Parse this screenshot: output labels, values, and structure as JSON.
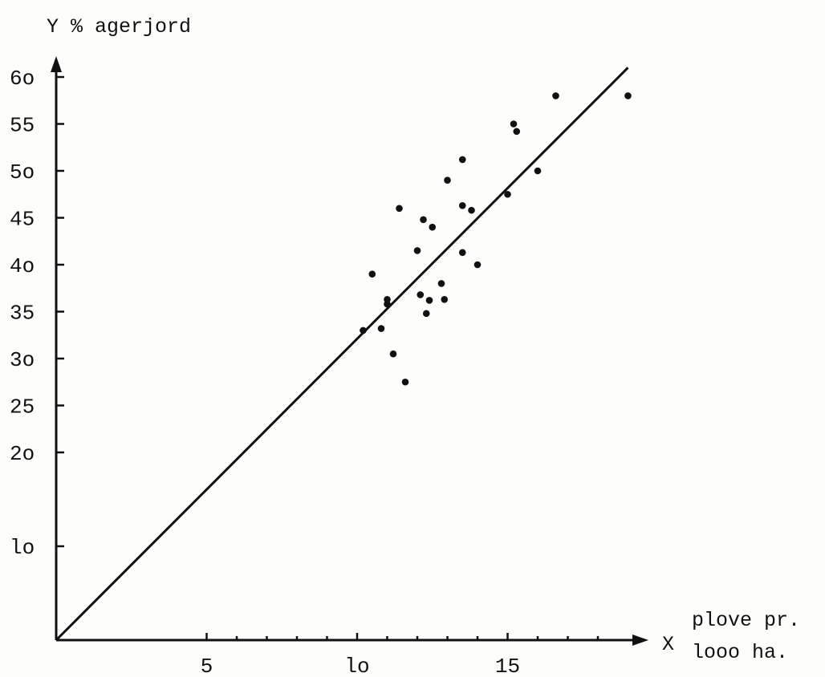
{
  "chart_data": {
    "type": "scatter",
    "title": "",
    "ylabel": "Y % agerjord",
    "xlabel_axis_letter": "X",
    "xlabel_lines": [
      "plove pr.",
      "looo ha."
    ],
    "xlim": [
      0,
      19.5
    ],
    "ylim": [
      0,
      62
    ],
    "grid": false,
    "x_ticks": [
      5,
      10,
      15
    ],
    "x_tick_labels": [
      "5",
      "lo",
      "15"
    ],
    "y_ticks": [
      10,
      20,
      25,
      30,
      35,
      40,
      45,
      50,
      55,
      60
    ],
    "y_tick_labels": [
      "lo",
      "2o",
      "25",
      "3o",
      "35",
      "4o",
      "45",
      "5o",
      "55",
      "6o"
    ],
    "x_minor_ticks": [
      6,
      7,
      8,
      9,
      11,
      12,
      13,
      14,
      16,
      17,
      18
    ],
    "series": [
      {
        "points": [
          [
            10.2,
            33.0
          ],
          [
            10.5,
            39.0
          ],
          [
            10.8,
            33.2
          ],
          [
            11.0,
            35.8
          ],
          [
            11.0,
            36.3
          ],
          [
            11.2,
            30.5
          ],
          [
            11.4,
            46.0
          ],
          [
            11.6,
            27.5
          ],
          [
            12.0,
            41.5
          ],
          [
            12.1,
            36.8
          ],
          [
            12.2,
            44.8
          ],
          [
            12.3,
            34.8
          ],
          [
            12.4,
            36.2
          ],
          [
            12.5,
            44.0
          ],
          [
            12.8,
            38.0
          ],
          [
            12.9,
            36.3
          ],
          [
            13.0,
            49.0
          ],
          [
            13.5,
            51.2
          ],
          [
            13.5,
            41.3
          ],
          [
            13.5,
            46.3
          ],
          [
            13.8,
            45.8
          ],
          [
            14.0,
            40.0
          ],
          [
            15.0,
            47.5
          ],
          [
            15.2,
            55.0
          ],
          [
            15.3,
            54.2
          ],
          [
            16.0,
            50.0
          ],
          [
            16.6,
            58.0
          ],
          [
            19.0,
            58.0
          ]
        ]
      }
    ],
    "regression_line": {
      "x": [
        0,
        19.0
      ],
      "y": [
        0,
        61.0
      ]
    }
  }
}
